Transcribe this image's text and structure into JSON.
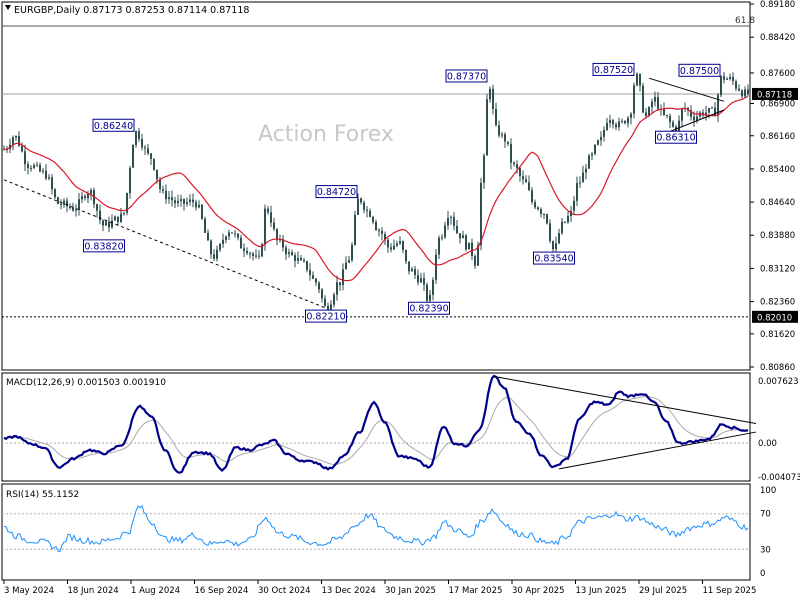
{
  "header": {
    "title": "EURGBP,Daily  0.87173 0.87253 0.87114 0.87118",
    "macd_label": "MACD(12,26,9) 0.001503 0.001910",
    "rsi_label": "RSI(14) 55.1152",
    "watermark": "Action Forex",
    "fib_label": "61.8"
  },
  "colors": {
    "candle": "#2f4f4f",
    "ma": "#d8192a",
    "macd": "#00008b",
    "signal": "#a9a9a9",
    "rsi": "#1e90ff",
    "grid_dash": "#b0b0b0",
    "label_border": "#00008b",
    "label_text": "#00008b",
    "price_tag_bg": "#000000",
    "trendline": "#000000"
  },
  "chart_data": [
    {
      "type": "candlestick",
      "symbol": "EURGBP",
      "timeframe": "Daily",
      "ylim": [
        0.8086,
        0.8918
      ],
      "y_ticks": [
        "0.89180",
        "0.88420",
        "0.87600",
        "0.86900",
        "0.86160",
        "0.85400",
        "0.84640",
        "0.83880",
        "0.83120",
        "0.82360",
        "0.81620",
        "0.80860"
      ],
      "x_ticks": [
        "3 May 2024",
        "18 Jun 2024",
        "1 Aug 2024",
        "16 Sep 2024",
        "30 Oct 2024",
        "13 Dec 2024",
        "30 Jan 2025",
        "17 Mar 2025",
        "30 Apr 2025",
        "13 Jun 2025",
        "29 Jul 2025",
        "11 Sep 2025"
      ],
      "current_price": "0.87118",
      "horizontal_level": "0.82010",
      "ma_period_note": "",
      "swing_labels": [
        {
          "text": "0.86240",
          "date_index": 132,
          "value": 0.8624
        },
        {
          "text": "0.83820",
          "date_index": 100,
          "value": 0.8382
        },
        {
          "text": "0.84720",
          "date_index": 355,
          "value": 0.8472
        },
        {
          "text": "0.82210",
          "date_index": 322,
          "value": 0.8221
        },
        {
          "text": "0.82390",
          "date_index": 425,
          "value": 0.8239
        },
        {
          "text": "0.87370",
          "date_index": 485,
          "value": 0.8737
        },
        {
          "text": "0.83540",
          "date_index": 550,
          "value": 0.8354
        },
        {
          "text": "0.87520",
          "date_index": 632,
          "value": 0.8752
        },
        {
          "text": "0.87500",
          "date_index": 718,
          "value": 0.875
        },
        {
          "text": "0.86310",
          "date_index": 672,
          "value": 0.8631
        }
      ],
      "anchors": [
        [
          0,
          0.8585
        ],
        [
          10,
          0.8615
        ],
        [
          25,
          0.855
        ],
        [
          40,
          0.853
        ],
        [
          55,
          0.846
        ],
        [
          70,
          0.845
        ],
        [
          85,
          0.849
        ],
        [
          100,
          0.841
        ],
        [
          118,
          0.843
        ],
        [
          132,
          0.8624
        ],
        [
          145,
          0.857
        ],
        [
          160,
          0.848
        ],
        [
          175,
          0.846
        ],
        [
          190,
          0.8465
        ],
        [
          210,
          0.834
        ],
        [
          225,
          0.84
        ],
        [
          240,
          0.836
        ],
        [
          255,
          0.833
        ],
        [
          262,
          0.845
        ],
        [
          275,
          0.837
        ],
        [
          288,
          0.834
        ],
        [
          300,
          0.832
        ],
        [
          312,
          0.828
        ],
        [
          322,
          0.8221
        ],
        [
          335,
          0.828
        ],
        [
          345,
          0.8335
        ],
        [
          355,
          0.8472
        ],
        [
          365,
          0.844
        ],
        [
          375,
          0.84
        ],
        [
          385,
          0.836
        ],
        [
          395,
          0.837
        ],
        [
          405,
          0.831
        ],
        [
          415,
          0.829
        ],
        [
          425,
          0.8239
        ],
        [
          435,
          0.838
        ],
        [
          445,
          0.844
        ],
        [
          455,
          0.839
        ],
        [
          465,
          0.836
        ],
        [
          472,
          0.8325
        ],
        [
          478,
          0.852
        ],
        [
          485,
          0.8737
        ],
        [
          492,
          0.863
        ],
        [
          500,
          0.861
        ],
        [
          510,
          0.8545
        ],
        [
          520,
          0.851
        ],
        [
          530,
          0.846
        ],
        [
          540,
          0.844
        ],
        [
          550,
          0.8354
        ],
        [
          558,
          0.841
        ],
        [
          565,
          0.843
        ],
        [
          575,
          0.851
        ],
        [
          585,
          0.856
        ],
        [
          595,
          0.86
        ],
        [
          605,
          0.866
        ],
        [
          615,
          0.864
        ],
        [
          625,
          0.866
        ],
        [
          632,
          0.8752
        ],
        [
          642,
          0.866
        ],
        [
          650,
          0.87
        ],
        [
          660,
          0.866
        ],
        [
          672,
          0.8631
        ],
        [
          680,
          0.868
        ],
        [
          690,
          0.866
        ],
        [
          700,
          0.867
        ],
        [
          710,
          0.867
        ],
        [
          718,
          0.875
        ],
        [
          726,
          0.8745
        ],
        [
          735,
          0.8725
        ],
        [
          740,
          0.8712
        ]
      ],
      "trendlines": [
        {
          "name": "lower-support",
          "from": [
            0,
            0.8515
          ],
          "to": [
            322,
            0.8221
          ]
        },
        {
          "name": "upper-wedge",
          "from": [
            645,
            0.8748
          ],
          "to": [
            720,
            0.8695
          ]
        },
        {
          "name": "lower-wedge",
          "from": [
            665,
            0.8625
          ],
          "to": [
            720,
            0.8675
          ]
        }
      ]
    },
    {
      "type": "line",
      "name": "MACD(12,26,9)",
      "ylim": [
        -0.004073,
        0.007623
      ],
      "y_ticks": [
        "0.007623",
        "0.00",
        "-0.004073"
      ],
      "macd_anchors": [
        [
          0,
          0.0005
        ],
        [
          12,
          0.0008
        ],
        [
          25,
          0.0
        ],
        [
          40,
          -0.0005
        ],
        [
          55,
          -0.0028
        ],
        [
          70,
          -0.0018
        ],
        [
          85,
          -0.0008
        ],
        [
          100,
          -0.0012
        ],
        [
          118,
          -0.0002
        ],
        [
          135,
          0.0043
        ],
        [
          148,
          0.003
        ],
        [
          160,
          -0.0007
        ],
        [
          175,
          -0.0035
        ],
        [
          190,
          -0.001
        ],
        [
          205,
          -0.0012
        ],
        [
          218,
          -0.0032
        ],
        [
          232,
          -0.0005
        ],
        [
          245,
          -0.0008
        ],
        [
          258,
          -0.0002
        ],
        [
          270,
          0.0003
        ],
        [
          282,
          -0.0012
        ],
        [
          296,
          -0.002
        ],
        [
          310,
          -0.0022
        ],
        [
          325,
          -0.003
        ],
        [
          340,
          -0.0015
        ],
        [
          355,
          0.0012
        ],
        [
          370,
          0.0048
        ],
        [
          380,
          0.0025
        ],
        [
          395,
          -0.0015
        ],
        [
          410,
          -0.0018
        ],
        [
          425,
          -0.0028
        ],
        [
          440,
          0.002
        ],
        [
          450,
          0.0
        ],
        [
          462,
          -0.0003
        ],
        [
          475,
          0.0015
        ],
        [
          490,
          0.0078
        ],
        [
          500,
          0.0065
        ],
        [
          512,
          0.0025
        ],
        [
          525,
          0.0012
        ],
        [
          538,
          -0.0015
        ],
        [
          550,
          -0.0028
        ],
        [
          563,
          -0.0018
        ],
        [
          575,
          0.0028
        ],
        [
          590,
          0.0048
        ],
        [
          605,
          0.0045
        ],
        [
          615,
          0.006
        ],
        [
          625,
          0.0055
        ],
        [
          638,
          0.0058
        ],
        [
          650,
          0.0048
        ],
        [
          662,
          0.0025
        ],
        [
          675,
          0.0
        ],
        [
          690,
          0.0002
        ],
        [
          705,
          0.0005
        ],
        [
          718,
          0.0022
        ],
        [
          730,
          0.0018
        ],
        [
          740,
          0.0015
        ]
      ],
      "trendlines": [
        {
          "name": "macd-upper",
          "from": [
            490,
            0.0078
          ],
          "to": [
            752,
            0.0023
          ]
        },
        {
          "name": "macd-lower",
          "from": [
            555,
            -0.003
          ],
          "to": [
            752,
            0.0013
          ]
        }
      ]
    },
    {
      "type": "line",
      "name": "RSI(14)",
      "ylim": [
        0,
        100
      ],
      "y_ticks": [
        "100",
        "70",
        "30",
        "0"
      ],
      "levels": [
        70,
        30
      ],
      "rsi_anchors": [
        [
          0,
          55
        ],
        [
          12,
          45
        ],
        [
          25,
          40
        ],
        [
          40,
          38
        ],
        [
          55,
          30
        ],
        [
          65,
          44
        ],
        [
          80,
          40
        ],
        [
          95,
          38
        ],
        [
          110,
          42
        ],
        [
          125,
          50
        ],
        [
          135,
          78
        ],
        [
          148,
          60
        ],
        [
          160,
          42
        ],
        [
          175,
          40
        ],
        [
          190,
          46
        ],
        [
          205,
          36
        ],
        [
          220,
          40
        ],
        [
          232,
          36
        ],
        [
          245,
          40
        ],
        [
          262,
          65
        ],
        [
          275,
          48
        ],
        [
          290,
          44
        ],
        [
          305,
          38
        ],
        [
          320,
          36
        ],
        [
          335,
          42
        ],
        [
          350,
          56
        ],
        [
          365,
          68
        ],
        [
          380,
          52
        ],
        [
          392,
          44
        ],
        [
          405,
          40
        ],
        [
          418,
          38
        ],
        [
          430,
          44
        ],
        [
          440,
          60
        ],
        [
          452,
          52
        ],
        [
          465,
          44
        ],
        [
          478,
          62
        ],
        [
          488,
          74
        ],
        [
          500,
          60
        ],
        [
          512,
          48
        ],
        [
          525,
          46
        ],
        [
          540,
          38
        ],
        [
          550,
          36
        ],
        [
          562,
          44
        ],
        [
          575,
          60
        ],
        [
          585,
          64
        ],
        [
          598,
          66
        ],
        [
          610,
          70
        ],
        [
          622,
          64
        ],
        [
          635,
          66
        ],
        [
          648,
          58
        ],
        [
          660,
          52
        ],
        [
          672,
          46
        ],
        [
          685,
          54
        ],
        [
          700,
          58
        ],
        [
          712,
          60
        ],
        [
          720,
          66
        ],
        [
          730,
          62
        ],
        [
          740,
          55
        ]
      ]
    }
  ]
}
